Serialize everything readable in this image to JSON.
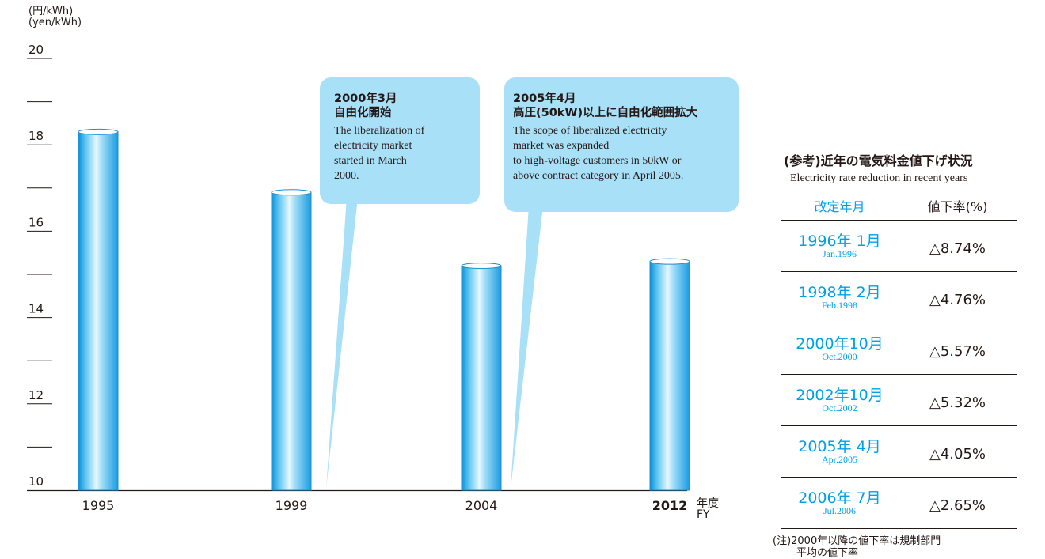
{
  "chart_data": {
    "type": "bar",
    "categories": [
      "1995",
      "1999",
      "2004",
      "2012"
    ],
    "values": [
      18.3,
      16.9,
      15.2,
      15.3
    ],
    "ylim": [
      10,
      20
    ],
    "y_ticks": [
      "20",
      "18",
      "16",
      "14",
      "12",
      "10"
    ],
    "ylabel_jp": "(円/kWh)",
    "ylabel_en": "(yen/kWh)",
    "xlabel_jp": "年度",
    "xlabel_en": "FY",
    "bar_color": "#35aee9",
    "highlight_category": "2012"
  },
  "callouts": [
    {
      "title": "2000年3月",
      "subtitle": "自由化開始",
      "lines": [
        "The liberalization of",
        "electricity market",
        "started in March",
        "2000."
      ]
    },
    {
      "title": "2005年4月",
      "subtitle": "高圧(50kW)以上に自由化範囲拡大",
      "lines": [
        "The scope of liberalized electricity",
        "market was expanded",
        "to high-voltage customers in 50kW or",
        "above contract category in April 2005."
      ]
    }
  ],
  "reference": {
    "title": "(参考)近年の電気料金値下げ状況",
    "subtitle": "Electricity rate reduction in recent years",
    "headers": [
      "改定年月",
      "値下率(%)"
    ],
    "rows": [
      {
        "date_jp": "1996年 1月",
        "date_en": "Jan.1996",
        "rate": "△8.74%"
      },
      {
        "date_jp": "1998年 2月",
        "date_en": "Feb.1998",
        "rate": "△4.76%"
      },
      {
        "date_jp": "2000年10月",
        "date_en": "Oct.2000",
        "rate": "△5.57%"
      },
      {
        "date_jp": "2002年10月",
        "date_en": "Oct.2002",
        "rate": "△5.32%"
      },
      {
        "date_jp": "2005年 4月",
        "date_en": "Apr.2005",
        "rate": "△4.05%"
      },
      {
        "date_jp": "2006年 7月",
        "date_en": "Jul.2006",
        "rate": "△2.65%"
      }
    ],
    "note_line1": "(注)2000年以降の値下率は規制部門",
    "note_line2": "平均の値下率"
  },
  "colors": {
    "callout": "#a8e0f8",
    "accent": "#00a0e9"
  }
}
